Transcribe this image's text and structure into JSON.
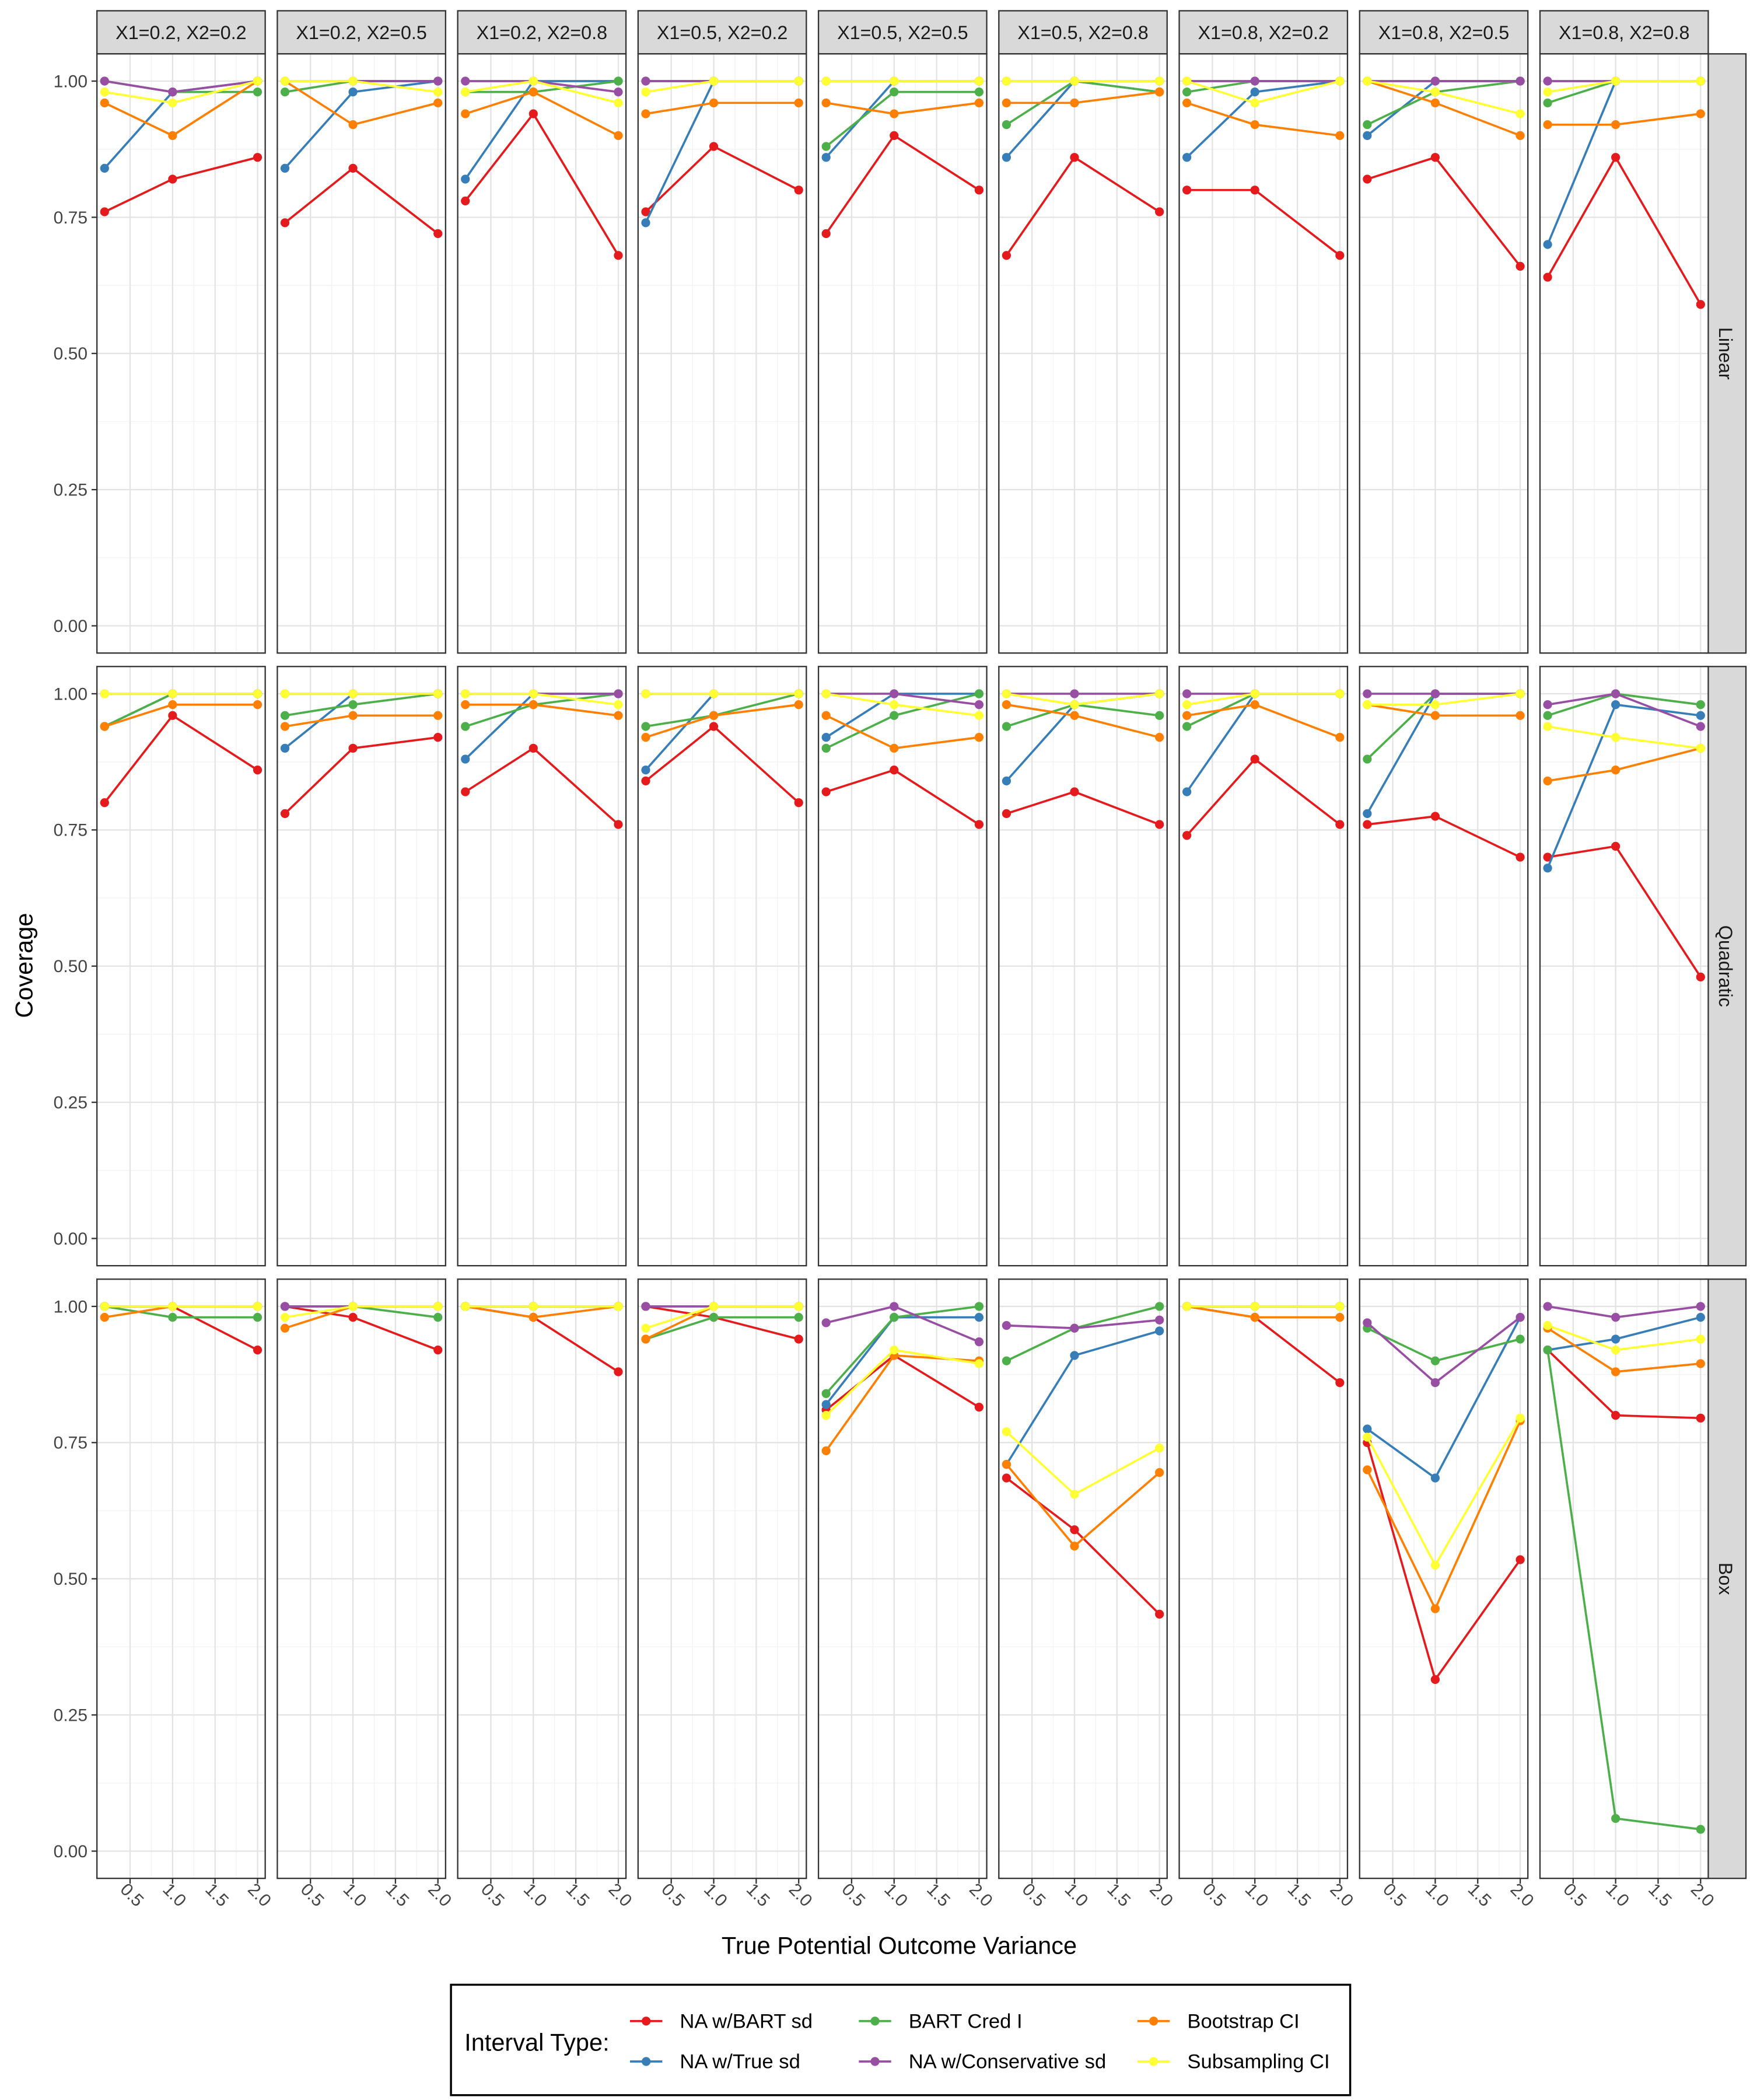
{
  "chart_data": {
    "type": "line",
    "x_label": "True Potential Outcome Variance",
    "y_label": "Coverage",
    "legend_title": "Interval Type:",
    "columns": [
      "X1=0.2, X2=0.2",
      "X1=0.2, X2=0.5",
      "X1=0.2, X2=0.8",
      "X1=0.5, X2=0.2",
      "X1=0.5, X2=0.5",
      "X1=0.5, X2=0.8",
      "X1=0.8, X2=0.2",
      "X1=0.8, X2=0.5",
      "X1=0.8, X2=0.8"
    ],
    "rows": [
      "Linear",
      "Quadratic",
      "Box"
    ],
    "x": [
      0.2,
      1.0,
      2.0
    ],
    "xlim": [
      0.11,
      2.09
    ],
    "xticks": [
      0.5,
      {
        "value": 1,
        "label": "1.0"
      },
      1.5,
      {
        "value": 2,
        "label": "2.0"
      }
    ],
    "ylim": [
      -0.05,
      1.05
    ],
    "yticks": [
      {
        "value": 0,
        "label": "0.00"
      },
      {
        "value": 0.25,
        "label": "0.25"
      },
      {
        "value": 0.5,
        "label": "0.50"
      },
      {
        "value": 0.75,
        "label": "0.75"
      },
      {
        "value": 1,
        "label": "1.00"
      }
    ],
    "grid": true,
    "legend_position": "bottom",
    "series": [
      {
        "name": "NA w/BART sd",
        "color": "#E41A1C"
      },
      {
        "name": "NA w/True sd",
        "color": "#377EB8"
      },
      {
        "name": "BART Cred I",
        "color": "#4DAF4A"
      },
      {
        "name": "NA w/Conservative sd",
        "color": "#984EA3"
      },
      {
        "name": "Bootstrap CI",
        "color": "#FF7F00"
      },
      {
        "name": "Subsampling CI",
        "color": "#FFFF33"
      }
    ],
    "values": [
      [
        [
          [
            0.76,
            0.82,
            0.86
          ],
          [
            0.84,
            0.98,
            1.0
          ],
          [
            1.0,
            0.98,
            0.98
          ],
          [
            1.0,
            0.98,
            1.0
          ],
          [
            0.96,
            0.9,
            1.0
          ],
          [
            0.98,
            0.96,
            1.0
          ]
        ],
        [
          [
            0.74,
            0.84,
            0.72
          ],
          [
            0.84,
            0.98,
            1.0
          ],
          [
            0.98,
            1.0,
            1.0
          ],
          [
            1.0,
            1.0,
            1.0
          ],
          [
            1.0,
            0.92,
            0.96
          ],
          [
            1.0,
            1.0,
            0.98
          ]
        ],
        [
          [
            0.78,
            0.94,
            0.68
          ],
          [
            0.82,
            1.0,
            1.0
          ],
          [
            0.98,
            0.98,
            1.0
          ],
          [
            1.0,
            1.0,
            0.98
          ],
          [
            0.94,
            0.98,
            0.9
          ],
          [
            0.98,
            1.0,
            0.96
          ]
        ],
        [
          [
            0.76,
            0.88,
            0.8
          ],
          [
            0.74,
            1.0,
            1.0
          ],
          [
            1.0,
            1.0,
            1.0
          ],
          [
            1.0,
            1.0,
            1.0
          ],
          [
            0.94,
            0.96,
            0.96
          ],
          [
            0.98,
            1.0,
            1.0
          ]
        ],
        [
          [
            0.72,
            0.9,
            0.8
          ],
          [
            0.86,
            1.0,
            1.0
          ],
          [
            0.88,
            0.98,
            0.98
          ],
          [
            1.0,
            1.0,
            1.0
          ],
          [
            0.96,
            0.94,
            0.96
          ],
          [
            1.0,
            1.0,
            1.0
          ]
        ],
        [
          [
            0.68,
            0.86,
            0.76
          ],
          [
            0.86,
            1.0,
            0.98
          ],
          [
            0.92,
            1.0,
            0.98
          ],
          [
            1.0,
            1.0,
            1.0
          ],
          [
            0.96,
            0.96,
            0.98
          ],
          [
            1.0,
            1.0,
            1.0
          ]
        ],
        [
          [
            0.8,
            0.8,
            0.68
          ],
          [
            0.86,
            0.98,
            1.0
          ],
          [
            0.98,
            1.0,
            1.0
          ],
          [
            1.0,
            1.0,
            1.0
          ],
          [
            0.96,
            0.92,
            0.9
          ],
          [
            1.0,
            0.96,
            1.0
          ]
        ],
        [
          [
            0.82,
            0.86,
            0.66
          ],
          [
            0.9,
            1.0,
            1.0
          ],
          [
            0.92,
            0.98,
            1.0
          ],
          [
            1.0,
            1.0,
            1.0
          ],
          [
            1.0,
            0.96,
            0.9
          ],
          [
            1.0,
            0.98,
            0.94
          ]
        ],
        [
          [
            0.64,
            0.86,
            0.59
          ],
          [
            0.7,
            1.0,
            1.0
          ],
          [
            0.96,
            1.0,
            1.0
          ],
          [
            1.0,
            1.0,
            1.0
          ],
          [
            0.92,
            0.92,
            0.94
          ],
          [
            0.98,
            1.0,
            1.0
          ]
        ]
      ],
      [
        [
          [
            0.8,
            0.96,
            0.86
          ],
          [
            0.94,
            1.0,
            1.0
          ],
          [
            0.94,
            1.0,
            1.0
          ],
          [
            1.0,
            1.0,
            1.0
          ],
          [
            0.94,
            0.98,
            0.98
          ],
          [
            1.0,
            1.0,
            1.0
          ]
        ],
        [
          [
            0.78,
            0.9,
            0.92
          ],
          [
            0.9,
            1.0,
            1.0
          ],
          [
            0.96,
            0.98,
            1.0
          ],
          [
            1.0,
            1.0,
            1.0
          ],
          [
            0.94,
            0.96,
            0.96
          ],
          [
            1.0,
            1.0,
            1.0
          ]
        ],
        [
          [
            0.82,
            0.9,
            0.76
          ],
          [
            0.88,
            1.0,
            1.0
          ],
          [
            0.94,
            0.98,
            1.0
          ],
          [
            1.0,
            1.0,
            1.0
          ],
          [
            0.98,
            0.98,
            0.96
          ],
          [
            1.0,
            1.0,
            0.98
          ]
        ],
        [
          [
            0.84,
            0.94,
            0.8
          ],
          [
            0.86,
            1.0,
            1.0
          ],
          [
            0.94,
            0.96,
            1.0
          ],
          [
            1.0,
            1.0,
            1.0
          ],
          [
            0.92,
            0.96,
            0.98
          ],
          [
            1.0,
            1.0,
            1.0
          ]
        ],
        [
          [
            0.82,
            0.86,
            0.76
          ],
          [
            0.92,
            1.0,
            1.0
          ],
          [
            0.9,
            0.96,
            1.0
          ],
          [
            1.0,
            1.0,
            0.98
          ],
          [
            0.96,
            0.9,
            0.92
          ],
          [
            1.0,
            0.98,
            0.96
          ]
        ],
        [
          [
            0.78,
            0.82,
            0.76
          ],
          [
            0.84,
            0.98,
            1.0
          ],
          [
            0.94,
            0.98,
            0.96
          ],
          [
            1.0,
            1.0,
            1.0
          ],
          [
            0.98,
            0.96,
            0.92
          ],
          [
            1.0,
            0.98,
            1.0
          ]
        ],
        [
          [
            0.74,
            0.88,
            0.76
          ],
          [
            0.82,
            1.0,
            1.0
          ],
          [
            0.94,
            1.0,
            1.0
          ],
          [
            1.0,
            1.0,
            1.0
          ],
          [
            0.96,
            0.98,
            0.92
          ],
          [
            0.98,
            1.0,
            1.0
          ]
        ],
        [
          [
            0.76,
            0.775,
            0.7
          ],
          [
            0.78,
            1.0,
            1.0
          ],
          [
            0.88,
            1.0,
            1.0
          ],
          [
            1.0,
            1.0,
            1.0
          ],
          [
            0.98,
            0.96,
            0.96
          ],
          [
            0.98,
            0.98,
            1.0
          ]
        ],
        [
          [
            0.7,
            0.72,
            0.48
          ],
          [
            0.68,
            0.98,
            0.96
          ],
          [
            0.96,
            1.0,
            0.98
          ],
          [
            0.98,
            1.0,
            0.94
          ],
          [
            0.84,
            0.86,
            0.9
          ],
          [
            0.94,
            0.92,
            0.9
          ]
        ]
      ],
      [
        [
          [
            1.0,
            1.0,
            0.92
          ],
          [
            1.0,
            1.0,
            1.0
          ],
          [
            1.0,
            0.98,
            0.98
          ],
          [
            1.0,
            1.0,
            1.0
          ],
          [
            0.98,
            1.0,
            1.0
          ],
          [
            1.0,
            1.0,
            1.0
          ]
        ],
        [
          [
            1.0,
            0.98,
            0.92
          ],
          [
            1.0,
            1.0,
            1.0
          ],
          [
            1.0,
            1.0,
            0.98
          ],
          [
            1.0,
            1.0,
            1.0
          ],
          [
            0.96,
            1.0,
            1.0
          ],
          [
            0.98,
            1.0,
            1.0
          ]
        ],
        [
          [
            1.0,
            0.98,
            0.88
          ],
          [
            1.0,
            1.0,
            1.0
          ],
          [
            1.0,
            1.0,
            1.0
          ],
          [
            1.0,
            1.0,
            1.0
          ],
          [
            1.0,
            0.98,
            1.0
          ],
          [
            1.0,
            1.0,
            1.0
          ]
        ],
        [
          [
            1.0,
            0.98,
            0.94
          ],
          [
            1.0,
            1.0,
            1.0
          ],
          [
            0.94,
            0.98,
            0.98
          ],
          [
            1.0,
            1.0,
            1.0
          ],
          [
            0.94,
            1.0,
            1.0
          ],
          [
            0.96,
            1.0,
            1.0
          ]
        ],
        [
          [
            0.81,
            0.91,
            0.815
          ],
          [
            0.82,
            0.98,
            0.98
          ],
          [
            0.84,
            0.98,
            1.0
          ],
          [
            0.97,
            1.0,
            0.935
          ],
          [
            0.735,
            0.91,
            0.9
          ],
          [
            0.8,
            0.92,
            0.895
          ]
        ],
        [
          [
            0.685,
            0.59,
            0.435
          ],
          [
            0.71,
            0.91,
            0.955
          ],
          [
            0.9,
            0.96,
            1.0
          ],
          [
            0.965,
            0.96,
            0.975
          ],
          [
            0.71,
            0.56,
            0.695
          ],
          [
            0.77,
            0.655,
            0.74
          ]
        ],
        [
          [
            1.0,
            0.98,
            0.86
          ],
          [
            1.0,
            1.0,
            1.0
          ],
          [
            1.0,
            1.0,
            1.0
          ],
          [
            1.0,
            1.0,
            1.0
          ],
          [
            1.0,
            0.98,
            0.98
          ],
          [
            1.0,
            1.0,
            1.0
          ]
        ],
        [
          [
            0.75,
            0.315,
            0.535
          ],
          [
            0.775,
            0.685,
            0.98
          ],
          [
            0.96,
            0.9,
            0.94
          ],
          [
            0.97,
            0.86,
            0.98
          ],
          [
            0.7,
            0.445,
            0.79
          ],
          [
            0.76,
            0.525,
            0.795
          ]
        ],
        [
          [
            0.92,
            0.8,
            0.795
          ],
          [
            0.92,
            0.94,
            0.98
          ],
          [
            0.92,
            0.06,
            0.04
          ],
          [
            1.0,
            0.98,
            1.0
          ],
          [
            0.96,
            0.88,
            0.895
          ],
          [
            0.965,
            0.92,
            0.94
          ]
        ]
      ]
    ]
  }
}
